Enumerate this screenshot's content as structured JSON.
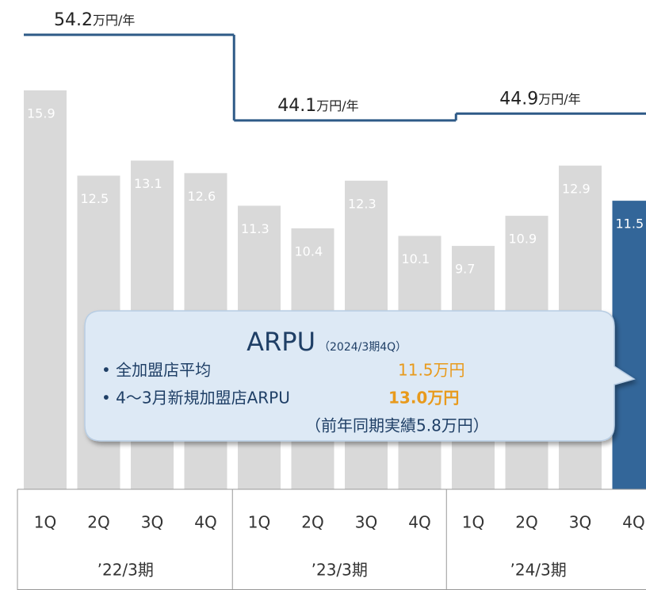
{
  "chart_data": {
    "type": "bar",
    "categories": [
      "1Q",
      "2Q",
      "3Q",
      "4Q",
      "1Q",
      "2Q",
      "3Q",
      "4Q",
      "1Q",
      "2Q",
      "3Q",
      "4Q"
    ],
    "groups": [
      "’22/3期",
      "’23/3期",
      "’24/3期"
    ],
    "values": [
      15.9,
      12.5,
      13.1,
      12.6,
      11.3,
      10.4,
      12.3,
      10.1,
      9.7,
      10.9,
      12.9,
      11.5
    ],
    "colors": [
      "#d9d9d9",
      "#d9d9d9",
      "#d9d9d9",
      "#d9d9d9",
      "#d9d9d9",
      "#d9d9d9",
      "#d9d9d9",
      "#d9d9d9",
      "#d9d9d9",
      "#d9d9d9",
      "#d9d9d9",
      "#336699"
    ],
    "ylim": [
      0,
      19.5
    ],
    "annual": {
      "values": [
        54.2,
        44.1,
        44.9
      ],
      "unit": "万円/年",
      "color": "#2e5a87",
      "axis": "y2"
    },
    "y2lim": [
      0.6,
      58.3
    ],
    "callout": {
      "title": "ARPU",
      "subtitle": "（2024/3期4Q）",
      "items": [
        {
          "label": "• 全加盟店平均",
          "value": "11.5万円"
        },
        {
          "label": "• 4～3月新規加盟店ARPU",
          "value": "13.0万円"
        }
      ],
      "note": "（前年同期実績5.8万円）"
    }
  }
}
